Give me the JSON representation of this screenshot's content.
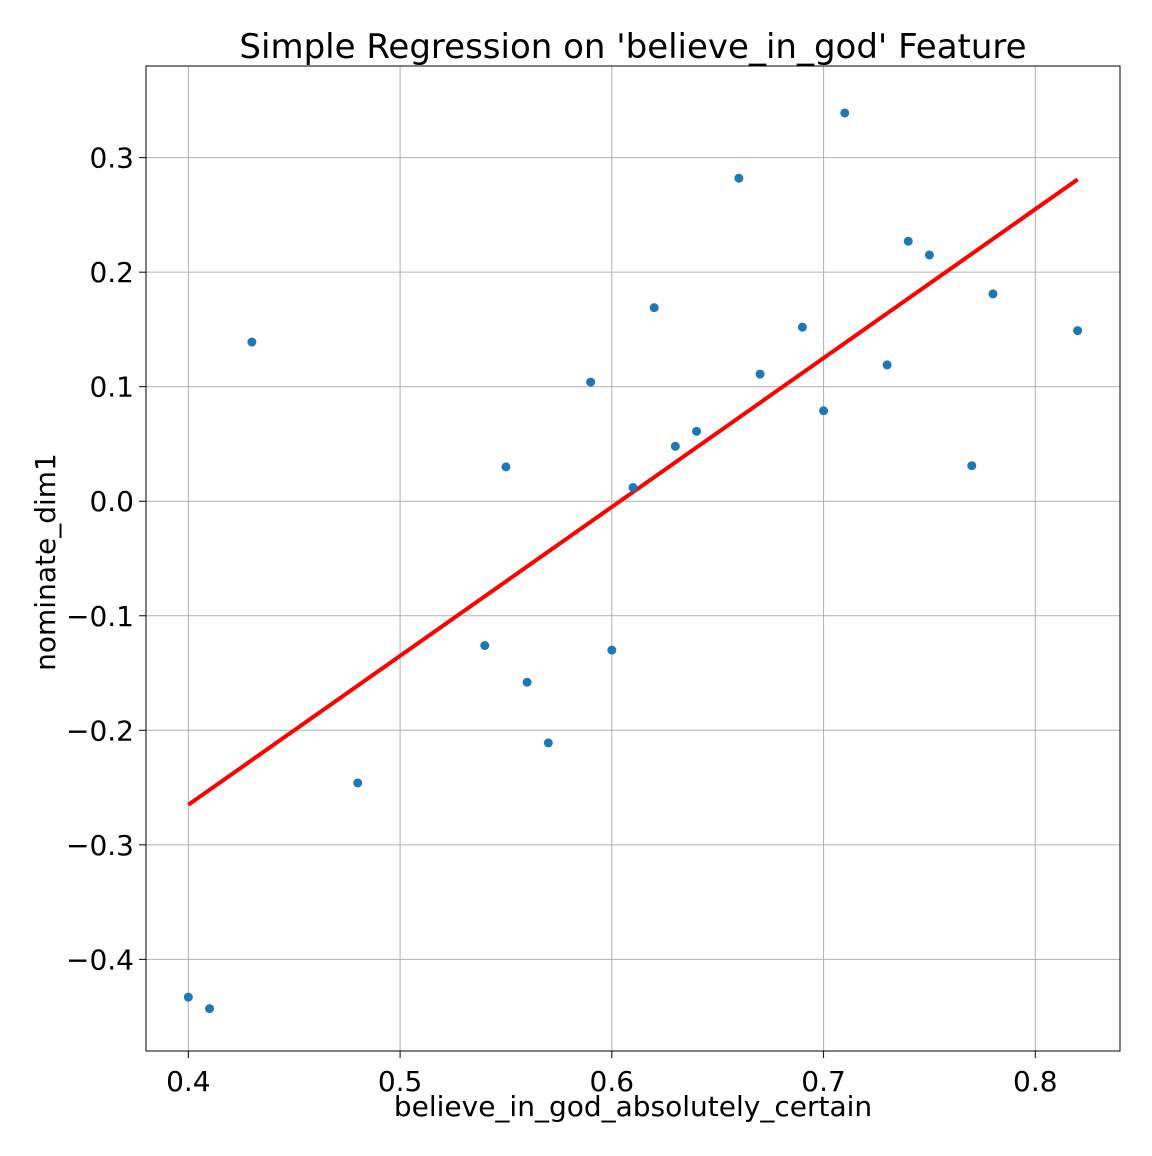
{
  "chart_data": {
    "type": "scatter",
    "title": "Simple Regression on 'believe_in_god' Feature",
    "xlabel": "believe_in_god_absolutely_certain",
    "ylabel": "nominate_dim1",
    "xlim": [
      0.38,
      0.84
    ],
    "ylim": [
      -0.48,
      0.38
    ],
    "xticks": [
      0.4,
      0.5,
      0.6,
      0.7,
      0.8
    ],
    "xtick_labels": [
      "0.4",
      "0.5",
      "0.6",
      "0.7",
      "0.8"
    ],
    "yticks": [
      -0.4,
      -0.3,
      -0.2,
      -0.1,
      0.0,
      0.1,
      0.2,
      0.3
    ],
    "ytick_labels": [
      "−0.4",
      "−0.3",
      "−0.2",
      "−0.1",
      "0.0",
      "0.1",
      "0.2",
      "0.3"
    ],
    "grid": true,
    "legend": "none",
    "series": [
      {
        "type": "scatter",
        "color": "#1f77b4",
        "x": [
          0.4,
          0.41,
          0.43,
          0.48,
          0.54,
          0.55,
          0.56,
          0.57,
          0.59,
          0.6,
          0.61,
          0.62,
          0.63,
          0.64,
          0.66,
          0.67,
          0.69,
          0.7,
          0.71,
          0.73,
          0.74,
          0.75,
          0.77,
          0.78,
          0.82
        ],
        "y": [
          -0.433,
          -0.443,
          0.139,
          -0.246,
          -0.126,
          0.03,
          -0.158,
          -0.211,
          0.104,
          -0.13,
          0.012,
          0.169,
          0.048,
          0.061,
          0.282,
          0.111,
          0.152,
          0.079,
          0.339,
          0.119,
          0.227,
          0.215,
          0.031,
          0.181,
          0.149
        ]
      },
      {
        "type": "line",
        "color": "#ff0000",
        "x": [
          0.4,
          0.82
        ],
        "y": [
          -0.265,
          0.281
        ]
      }
    ]
  }
}
